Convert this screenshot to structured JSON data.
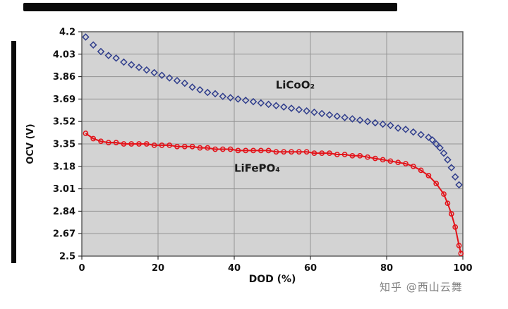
{
  "watermark": {
    "text": "知乎 @西山云舞"
  },
  "chart_data": {
    "type": "line",
    "title": "",
    "xlabel": "DOD (%)",
    "ylabel": "OCV (V)",
    "xlim": [
      0,
      100
    ],
    "ylim": [
      2.5,
      4.2
    ],
    "xticks": [
      0,
      20,
      40,
      60,
      80,
      100
    ],
    "yticks": [
      2.5,
      2.67,
      2.84,
      3.01,
      3.18,
      3.35,
      3.52,
      3.69,
      3.86,
      4.03,
      4.2
    ],
    "ytick_labels": [
      "2.5",
      "2.67",
      "2.84",
      "3.01",
      "3.18",
      "3.35",
      "3.52",
      "3.69",
      "3.86",
      "4.03",
      "4.2"
    ],
    "xtick_labels": [
      "0",
      "20",
      "40",
      "60",
      "80",
      "100"
    ],
    "grid": true,
    "legend_position": "inline-annotations",
    "plot_bg": "#d3d3d3",
    "grid_color": "#949494",
    "frame_color": "#5f5f5f",
    "series": [
      {
        "name": "LiCoO₂",
        "color": "#2f3d8c",
        "marker": "diamond",
        "line": false,
        "points": [
          [
            1,
            4.16
          ],
          [
            3,
            4.1
          ],
          [
            5,
            4.05
          ],
          [
            7,
            4.02
          ],
          [
            9,
            4.0
          ],
          [
            11,
            3.97
          ],
          [
            13,
            3.95
          ],
          [
            15,
            3.93
          ],
          [
            17,
            3.91
          ],
          [
            19,
            3.89
          ],
          [
            21,
            3.87
          ],
          [
            23,
            3.85
          ],
          [
            25,
            3.83
          ],
          [
            27,
            3.81
          ],
          [
            29,
            3.78
          ],
          [
            31,
            3.76
          ],
          [
            33,
            3.74
          ],
          [
            35,
            3.73
          ],
          [
            37,
            3.71
          ],
          [
            39,
            3.7
          ],
          [
            41,
            3.69
          ],
          [
            43,
            3.68
          ],
          [
            45,
            3.67
          ],
          [
            47,
            3.66
          ],
          [
            49,
            3.65
          ],
          [
            51,
            3.64
          ],
          [
            53,
            3.63
          ],
          [
            55,
            3.62
          ],
          [
            57,
            3.61
          ],
          [
            59,
            3.6
          ],
          [
            61,
            3.59
          ],
          [
            63,
            3.58
          ],
          [
            65,
            3.57
          ],
          [
            67,
            3.56
          ],
          [
            69,
            3.55
          ],
          [
            71,
            3.54
          ],
          [
            73,
            3.53
          ],
          [
            75,
            3.52
          ],
          [
            77,
            3.51
          ],
          [
            79,
            3.5
          ],
          [
            81,
            3.49
          ],
          [
            83,
            3.47
          ],
          [
            85,
            3.46
          ],
          [
            87,
            3.44
          ],
          [
            89,
            3.42
          ],
          [
            91,
            3.4
          ],
          [
            92,
            3.38
          ],
          [
            93,
            3.35
          ],
          [
            94,
            3.32
          ],
          [
            95,
            3.28
          ],
          [
            96,
            3.23
          ],
          [
            97,
            3.17
          ],
          [
            98,
            3.1
          ],
          [
            99,
            3.04
          ]
        ]
      },
      {
        "name": "LiFePO₄",
        "color": "#e31219",
        "marker": "circle",
        "line": true,
        "points": [
          [
            1,
            3.43
          ],
          [
            3,
            3.39
          ],
          [
            5,
            3.37
          ],
          [
            7,
            3.36
          ],
          [
            9,
            3.36
          ],
          [
            11,
            3.35
          ],
          [
            13,
            3.35
          ],
          [
            15,
            3.35
          ],
          [
            17,
            3.35
          ],
          [
            19,
            3.34
          ],
          [
            21,
            3.34
          ],
          [
            23,
            3.34
          ],
          [
            25,
            3.33
          ],
          [
            27,
            3.33
          ],
          [
            29,
            3.33
          ],
          [
            31,
            3.32
          ],
          [
            33,
            3.32
          ],
          [
            35,
            3.31
          ],
          [
            37,
            3.31
          ],
          [
            39,
            3.31
          ],
          [
            41,
            3.3
          ],
          [
            43,
            3.3
          ],
          [
            45,
            3.3
          ],
          [
            47,
            3.3
          ],
          [
            49,
            3.3
          ],
          [
            51,
            3.29
          ],
          [
            53,
            3.29
          ],
          [
            55,
            3.29
          ],
          [
            57,
            3.29
          ],
          [
            59,
            3.29
          ],
          [
            61,
            3.28
          ],
          [
            63,
            3.28
          ],
          [
            65,
            3.28
          ],
          [
            67,
            3.27
          ],
          [
            69,
            3.27
          ],
          [
            71,
            3.26
          ],
          [
            73,
            3.26
          ],
          [
            75,
            3.25
          ],
          [
            77,
            3.24
          ],
          [
            79,
            3.23
          ],
          [
            81,
            3.22
          ],
          [
            83,
            3.21
          ],
          [
            85,
            3.2
          ],
          [
            87,
            3.18
          ],
          [
            89,
            3.15
          ],
          [
            91,
            3.11
          ],
          [
            93,
            3.05
          ],
          [
            95,
            2.97
          ],
          [
            96,
            2.9
          ],
          [
            97,
            2.82
          ],
          [
            98,
            2.72
          ],
          [
            99,
            2.58
          ],
          [
            99.5,
            2.52
          ]
        ]
      }
    ],
    "annotations": [
      {
        "text": "LiCoO₂",
        "x": 56,
        "y": 3.77,
        "color": "#1a1a1a"
      },
      {
        "text": "LiFePO₄",
        "x": 46,
        "y": 3.14,
        "color": "#1a1a1a"
      }
    ]
  }
}
